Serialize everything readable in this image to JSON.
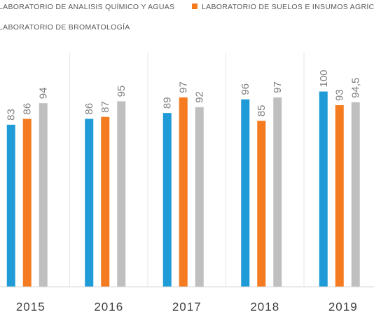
{
  "chart_data": {
    "type": "bar",
    "categories": [
      "2015",
      "2016",
      "2017",
      "2018",
      "2019"
    ],
    "series": [
      {
        "name": "LABORATORIO DE ANALISIS QUÍMICO Y AGUAS",
        "color": "#1f9bd7",
        "values": [
          83,
          86,
          89,
          96,
          100
        ]
      },
      {
        "name": "LABORATORIO DE SUELOS E INSUMOS AGRÍCOLAS",
        "color": "#f47b20",
        "values": [
          86,
          87,
          97,
          85,
          93
        ]
      },
      {
        "name": "LABORATORIO DE BROMATOLOGÍA",
        "color": "#bfbfbf",
        "values": [
          94,
          95,
          92,
          97,
          94.5
        ]
      }
    ],
    "data_labels": [
      [
        "83",
        "86",
        "89",
        "96",
        "100"
      ],
      [
        "86",
        "87",
        "97",
        "85",
        "93"
      ],
      [
        "94",
        "95",
        "92",
        "97",
        "94,5"
      ]
    ],
    "ylim": [
      0,
      100
    ],
    "grid": false,
    "legend_position": "top",
    "category_separators": true
  }
}
